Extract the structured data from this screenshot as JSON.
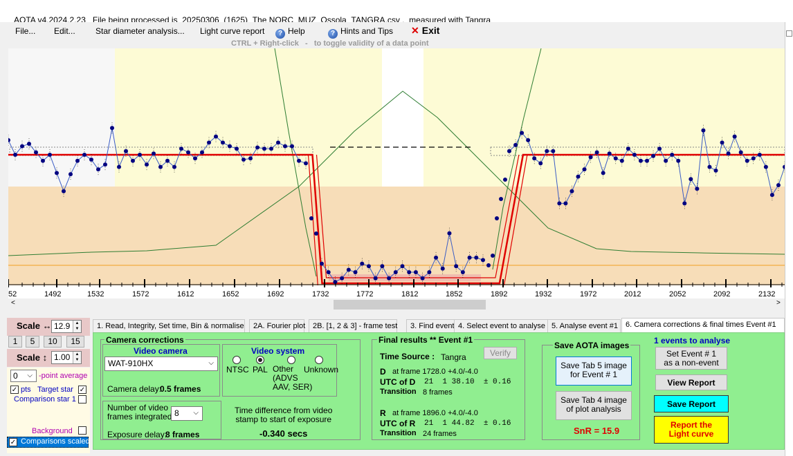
{
  "window": {
    "title": "AOTA v4.2024.2.23   File being processed is  20250306_(1625)_The NORC_MUZ_Ossola_TANGRA.csv ,  measured with Tangra"
  },
  "menu": {
    "file": "File...",
    "edit": "Edit...",
    "star_diameter": "Star diameter analysis...",
    "light_curve_report": "Light curve report",
    "help": "Help",
    "hints": "Hints and Tips",
    "exit": "Exit",
    "hint_text": "CTRL + Right-click   -   to toggle validity of a data point"
  },
  "chart_data": {
    "type": "line",
    "x_ticks": [
      "52",
      "1492",
      "1532",
      "1572",
      "1612",
      "1652",
      "1692",
      "1732",
      "1772",
      "1812",
      "1852",
      "1892",
      "1932",
      "1972",
      "2012",
      "2052",
      "2092",
      "2132"
    ],
    "x_range": [
      1452,
      2144
    ],
    "colors": {
      "event_zone": "#fdfbd5",
      "lower_zone": "#f7ddb8",
      "model": "#e00000",
      "data": "#000080",
      "fourier": "#2e7d32",
      "baseline": "#f0a020"
    },
    "model_levels": {
      "high": 1.0,
      "low": 0.0
    },
    "event": {
      "D_frame": 1728.0,
      "R_frame": 1896.0,
      "D_transition_frames": 8,
      "R_transition_frames": 24
    },
    "data_offset_note": "",
    "series": [
      {
        "name": "",
        "values_high_left": [
          1.12,
          1.0,
          1.07,
          1.09,
          1.02,
          0.95,
          1.0,
          0.85,
          0.7,
          0.84,
          0.95,
          1.0,
          0.96,
          0.88,
          0.92,
          1.22,
          0.9,
          1.03,
          0.95,
          1.0,
          0.92,
          1.01,
          0.9,
          0.95,
          0.9,
          1.05,
          1.02,
          0.97,
          1.02,
          1.1,
          1.15,
          1.1,
          1.07,
          1.05,
          0.96,
          0.97,
          1.06,
          1.05,
          1.05,
          1.1,
          1.07,
          1.07,
          0.95,
          0.93
        ]
      },
      {
        "name": "",
        "values_low": [
          0.07,
          0.0,
          -0.08,
          -0.05,
          0.02,
          0.0,
          0.07,
          0.05,
          -0.05,
          0.05,
          -0.05,
          0.0,
          0.05,
          0.0,
          0.0,
          -0.05,
          0.0,
          0.12,
          0.03,
          0.32,
          0.05,
          0.0,
          0.12,
          0.12,
          0.1
        ]
      },
      {
        "name": "",
        "values_high_right": [
          1.03,
          1.08,
          1.18,
          1.12,
          0.97,
          0.93,
          1.03,
          1.03,
          0.6,
          0.6,
          0.7,
          0.82,
          0.88,
          0.98,
          1.02,
          0.85,
          1.01,
          0.97,
          0.95,
          1.05,
          1.0,
          0.95,
          0.95,
          0.99,
          1.05,
          0.95,
          1.0,
          0.95,
          0.6,
          0.8,
          0.72,
          1.2,
          0.9,
          0.87,
          1.1,
          1.01,
          1.15,
          1.02,
          0.95,
          0.97,
          1.0,
          0.9,
          0.67,
          0.75,
          0.9
        ]
      }
    ]
  },
  "tabs": [
    "1.  Read, Integrity, Set time, Bin & normalise",
    "2A. Fourier plot",
    "2B. [1, 2 & 3] - frame test",
    "3. Find events",
    "4. Select event to analyse",
    "5. Analyse event #1",
    "6. Camera corrections & final times Event #1"
  ],
  "left_panel": {
    "scale_h_label": "Scale ↔",
    "scale_h_value": "12.9",
    "zoom_buttons": [
      "1",
      "5",
      "10",
      "15"
    ],
    "scale_v_label": "Scale ↕",
    "scale_v_value": "1.00",
    "point_avg_value": "0",
    "point_avg_label": "point average",
    "pts_label": "pts",
    "target_star_label": "Target star",
    "comparison_star_label": "Comparison star 1",
    "background_label": "Background",
    "comparisons_scaled_label": "Comparisons scaled"
  },
  "camera": {
    "header": "Camera corrections",
    "video_camera_label": "Video camera",
    "camera_value": "WAT-910HX",
    "camera_delay_label": "Camera delay:",
    "camera_delay_value": "0.5 frames",
    "video_system_label": "Video system",
    "systems": [
      "NTSC",
      "PAL",
      "Other\n(ADVS\nAAV, SER)",
      "Unknown"
    ],
    "selected_system": "PAL",
    "frames_integrated_label": "Number of video\nframes integrated",
    "frames_integrated_value": "8",
    "exposure_delay_label": "Exposure delay:",
    "exposure_delay_value": "8 frames",
    "time_diff_label": "Time difference from video\nstamp to start of exposure",
    "time_diff_value": "-0.340 secs"
  },
  "final": {
    "header": "Final results  **  Event #1",
    "verify": "Verify",
    "time_source_label": "Time Source :",
    "time_source_value": "Tangra",
    "D_label": "D",
    "D_frame": "at frame 1728.0  +4.0/-4.0",
    "utc_D_label": "UTC of D",
    "utc_D_value": "21  1 38.10  ± 0.16",
    "transition_label": "Transition",
    "D_transition": "8 frames",
    "R_label": "R",
    "R_frame": "at frame 1896.0  +4.0/-4.0",
    "utc_R_label": "UTC of R",
    "utc_R_value": "21  1 44.82  ± 0.16",
    "R_transition": "24 frames"
  },
  "save": {
    "header": "Save AOTA images",
    "tab5": "Save Tab 5 image\nfor Event # 1",
    "tab4": "Save Tab 4 image\nof plot analysis",
    "snr": "SnR = 15.9"
  },
  "actions": {
    "events_count": "1 events to analyse",
    "set_non_event": "Set Event # 1\nas a non-event",
    "view_report": "View Report",
    "save_report": "Save Report",
    "report_light_curve": "Report the\nLight curve"
  }
}
